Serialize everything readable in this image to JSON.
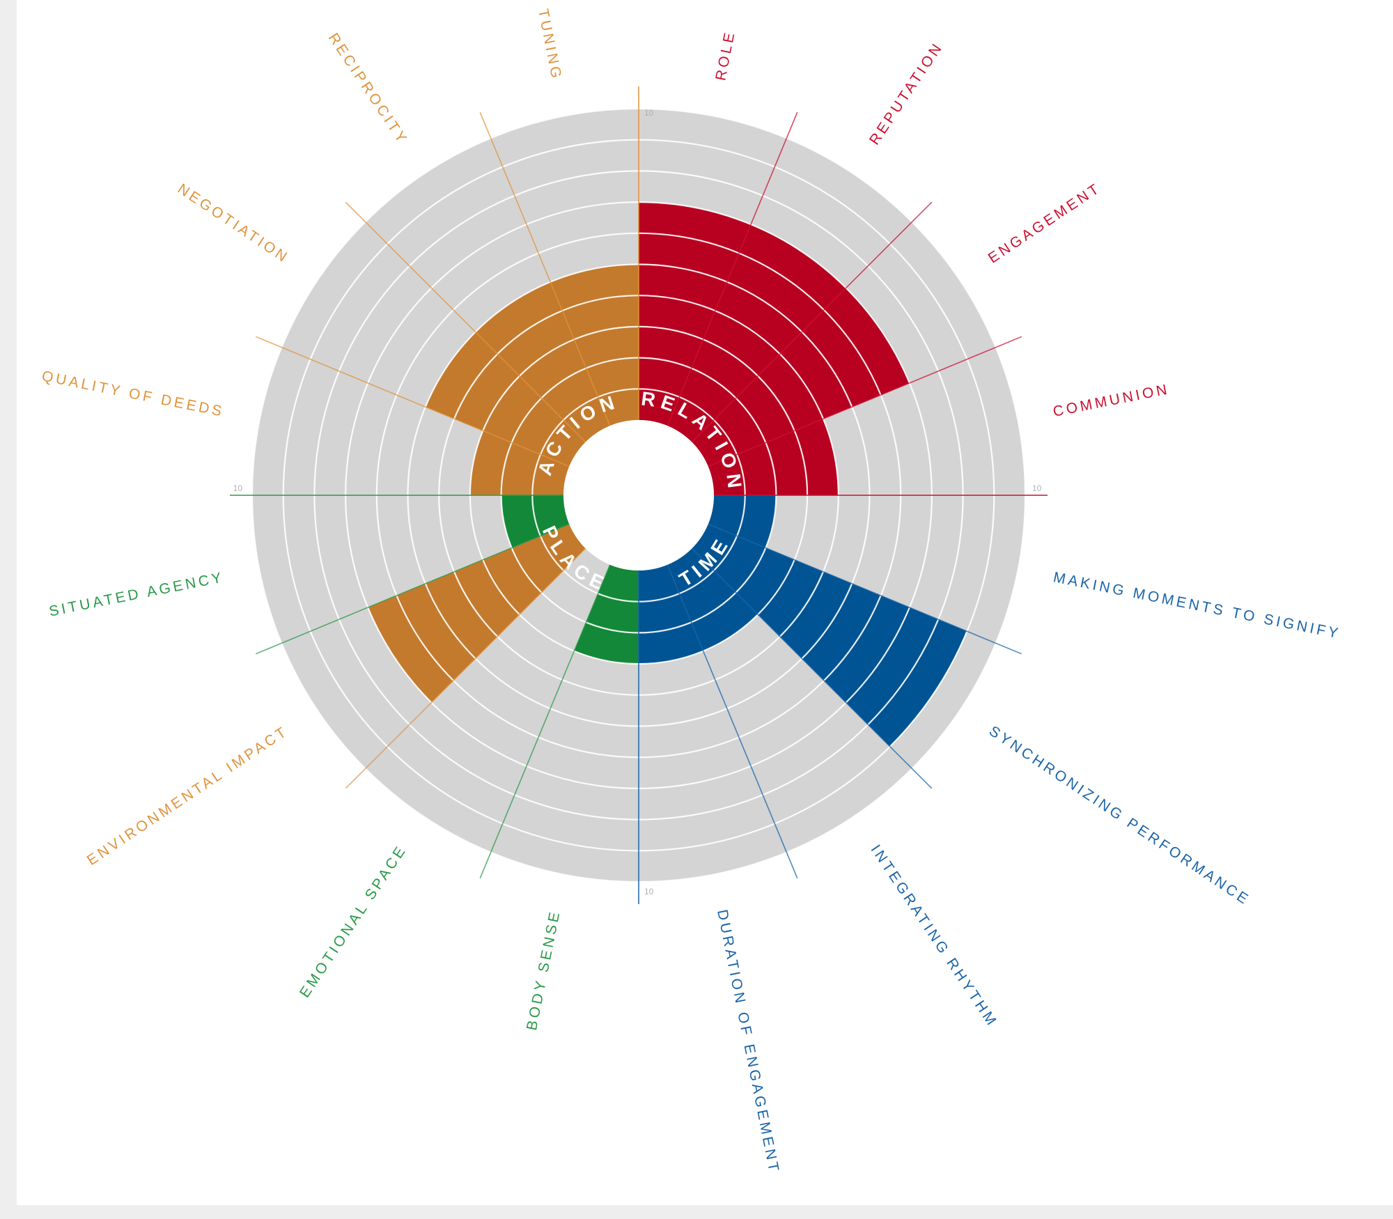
{
  "chart_data": {
    "type": "radial-bar",
    "title": "",
    "r_max": 10,
    "r_tick_label": "10",
    "colors": {
      "ACTION": "#c47a2c",
      "RELATION": "#b80020",
      "TIME": "#005494",
      "PLACE": "#138838",
      "background": "#d4d4d4",
      "ring": "#ffffff"
    },
    "label_colors": {
      "ACTION": "#e0933c",
      "RELATION": "#cc1030",
      "TIME": "#1a64a8",
      "PLACE": "#2a9a48"
    },
    "groups": [
      {
        "name": "RELATION",
        "color_key": "RELATION"
      },
      {
        "name": "TIME",
        "color_key": "TIME"
      },
      {
        "name": "PLACE",
        "color_key": "PLACE"
      },
      {
        "name": "ACTION",
        "color_key": "ACTION"
      }
    ],
    "categories": [
      {
        "label": "ROLE",
        "group": "RELATION",
        "value": 7
      },
      {
        "label": "REPUTATION",
        "group": "RELATION",
        "value": 7
      },
      {
        "label": "ENGAGEMENT",
        "group": "RELATION",
        "value": 7
      },
      {
        "label": "COMMUNION",
        "group": "RELATION",
        "value": 4
      },
      {
        "label": "MAKING MOMENTS TO SIGNIFY",
        "group": "TIME",
        "value": 2
      },
      {
        "label": "SYNCHRONIZING PERFORMANCE",
        "group": "TIME",
        "value": 9
      },
      {
        "label": "INTEGRATING RHYTHM",
        "group": "TIME",
        "value": 3
      },
      {
        "label": "DURATION OF ENGAGEMENT",
        "group": "TIME",
        "value": 3
      },
      {
        "label": "BODY SENSE",
        "group": "PLACE",
        "value": 3
      },
      {
        "label": "EMOTIONAL SPACE",
        "group": "PLACE",
        "value": 0
      },
      {
        "label": "ENVIRONMENTAL IMPACT",
        "group": "ACTION",
        "value": 7
      },
      {
        "label": "SITUATED AGENCY",
        "group": "PLACE",
        "value": 2
      },
      {
        "label": "QUALITY OF DEEDS",
        "group": "ACTION",
        "value": 3
      },
      {
        "label": "NEGOTIATION",
        "group": "ACTION",
        "value": 5
      },
      {
        "label": "RECIPROCITY",
        "group": "ACTION",
        "value": 5
      },
      {
        "label": "TUNING",
        "group": "ACTION",
        "value": 5
      }
    ]
  }
}
